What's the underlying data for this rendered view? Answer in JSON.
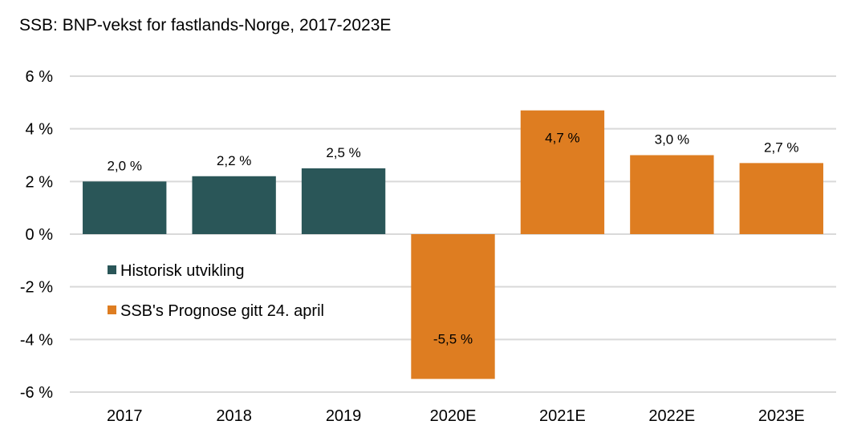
{
  "chart_data": {
    "type": "bar",
    "title": "SSB: BNP-vekst for fastlands-Norge, 2017-2023E",
    "xlabel": "",
    "ylabel": "",
    "categories": [
      "2017",
      "2018",
      "2019",
      "2020E",
      "2021E",
      "2022E",
      "2023E"
    ],
    "values": [
      2.0,
      2.2,
      2.5,
      -5.5,
      4.7,
      3.0,
      2.7
    ],
    "data_labels": [
      "2,0 %",
      "2,2 %",
      "2,5 %",
      "-5,5 %",
      "4,7 %",
      "3,0 %",
      "2,7 %"
    ],
    "series_index": [
      0,
      0,
      0,
      1,
      1,
      1,
      1
    ],
    "series": [
      {
        "name": "Historisk utvikling",
        "color": "#2a5658"
      },
      {
        "name": "SSB's Prognose gitt 24. april",
        "color": "#de7d21"
      }
    ],
    "ylim": [
      -6,
      6
    ],
    "yticks": [
      6,
      4,
      2,
      0,
      -2,
      -4,
      -6
    ],
    "ytick_labels": [
      "6 %",
      "4 %",
      "2 %",
      "0 %",
      "-2 %",
      "-4 %",
      "-6 %"
    ],
    "grid": true,
    "grid_color": "#d9d9d9",
    "legend_position": "inside-left"
  }
}
